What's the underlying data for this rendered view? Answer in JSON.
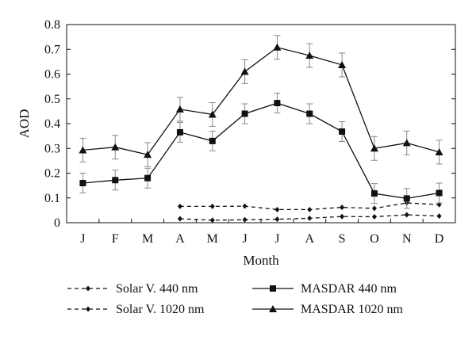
{
  "chart_data": {
    "type": "line",
    "xlabel": "Month",
    "ylabel": "AOD",
    "ylim": [
      0,
      0.8
    ],
    "yticks": [
      "0",
      "0.1",
      "0.2",
      "0.3",
      "0.4",
      "0.5",
      "0.6",
      "0.7",
      "0.8"
    ],
    "categories": [
      "J",
      "F",
      "M",
      "A",
      "M",
      "J",
      "J",
      "A",
      "S",
      "O",
      "N",
      "D"
    ],
    "grid": false,
    "legend_position": "bottom",
    "series": [
      {
        "name": "Solar V. 440 nm",
        "marker": "diamond",
        "line_style": "dashed",
        "values": [
          null,
          null,
          null,
          0.066,
          0.066,
          0.067,
          0.053,
          0.053,
          0.062,
          0.058,
          0.08,
          0.073
        ],
        "errors": null
      },
      {
        "name": "Solar V. 1020 nm",
        "marker": "diamond",
        "line_style": "dashed",
        "values": [
          null,
          null,
          null,
          0.016,
          0.01,
          0.012,
          0.014,
          0.018,
          0.025,
          0.024,
          0.032,
          0.027
        ],
        "errors": null
      },
      {
        "name": "MASDAR 440 nm",
        "marker": "square",
        "line_style": "solid",
        "values": [
          0.16,
          0.172,
          0.18,
          0.365,
          0.33,
          0.44,
          0.483,
          0.44,
          0.368,
          0.118,
          0.098,
          0.12
        ],
        "errors": [
          0.04,
          0.04,
          0.04,
          0.04,
          0.04,
          0.04,
          0.04,
          0.04,
          0.04,
          0.04,
          0.04,
          0.04
        ]
      },
      {
        "name": "MASDAR 1020 nm",
        "marker": "triangle",
        "line_style": "solid",
        "values": [
          0.293,
          0.305,
          0.275,
          0.458,
          0.437,
          0.61,
          0.708,
          0.675,
          0.637,
          0.3,
          0.322,
          0.285
        ],
        "errors": [
          0.048,
          0.048,
          0.048,
          0.048,
          0.048,
          0.048,
          0.048,
          0.048,
          0.048,
          0.048,
          0.048,
          0.048
        ]
      }
    ]
  }
}
